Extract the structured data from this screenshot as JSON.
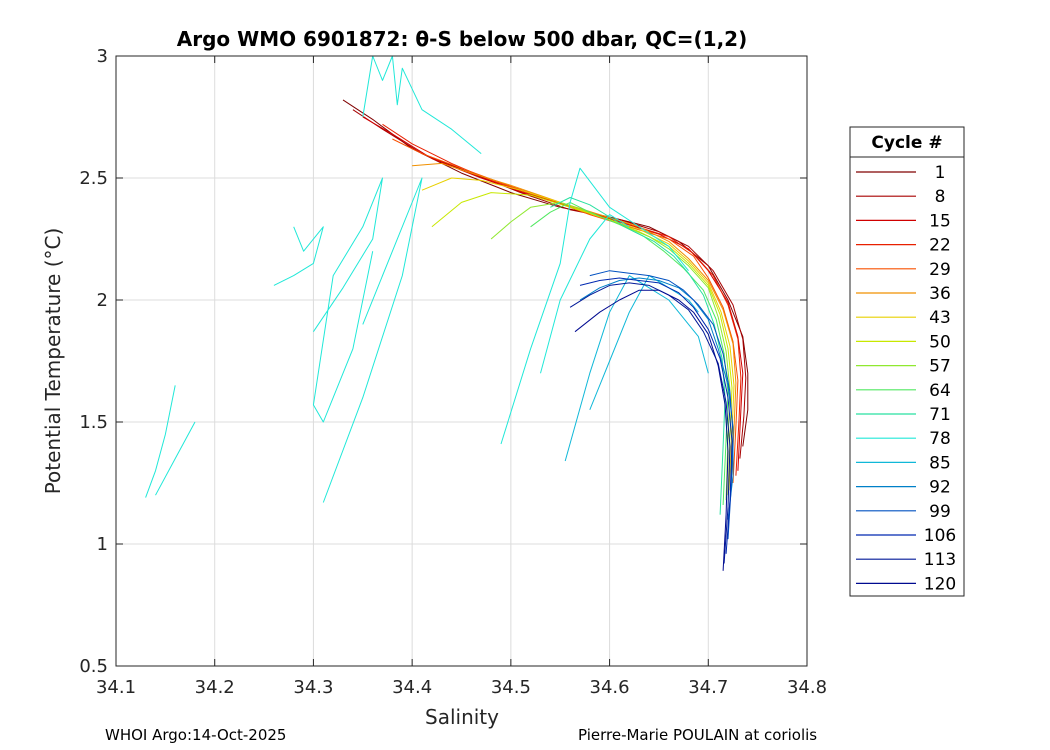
{
  "chart_data": {
    "type": "line",
    "title": "Argo WMO 6901872: θ-S below 500 dbar,  QC=(1,2)",
    "xlabel": "Salinity",
    "ylabel": "Potential Temperature (°C)",
    "xlim": [
      34.1,
      34.8
    ],
    "ylim": [
      0.5,
      3.0
    ],
    "xticks": [
      "34.1",
      "34.2",
      "34.3",
      "34.4",
      "34.5",
      "34.6",
      "34.7",
      "34.8"
    ],
    "yticks": [
      "0.5",
      "1",
      "1.5",
      "2",
      "2.5",
      "3"
    ],
    "grid": true,
    "legend": {
      "title": "Cycle #",
      "placement": "right-outside",
      "entries": [
        {
          "label": "1",
          "color": "#800000"
        },
        {
          "label": "8",
          "color": "#a80000"
        },
        {
          "label": "15",
          "color": "#d00000"
        },
        {
          "label": "22",
          "color": "#e82000"
        },
        {
          "label": "29",
          "color": "#f85000"
        },
        {
          "label": "36",
          "color": "#f09000"
        },
        {
          "label": "43",
          "color": "#e8d000"
        },
        {
          "label": "50",
          "color": "#c8e800"
        },
        {
          "label": "57",
          "color": "#90e830"
        },
        {
          "label": "64",
          "color": "#50e860"
        },
        {
          "label": "71",
          "color": "#28e0a0"
        },
        {
          "label": "78",
          "color": "#20e8d8"
        },
        {
          "label": "85",
          "color": "#10b8d8"
        },
        {
          "label": "92",
          "color": "#0080c8"
        },
        {
          "label": "99",
          "color": "#0050c0"
        },
        {
          "label": "106",
          "color": "#0028b0"
        },
        {
          "label": "113",
          "color": "#001898"
        },
        {
          "label": "120",
          "color": "#000a90"
        }
      ]
    },
    "series": [
      {
        "color": "#800000",
        "x": [
          34.33,
          34.36,
          34.4,
          34.45,
          34.5,
          34.55,
          34.6,
          34.64,
          34.67,
          34.7,
          34.72,
          34.735,
          34.74,
          34.74,
          34.735
        ],
        "y": [
          2.82,
          2.74,
          2.62,
          2.52,
          2.44,
          2.38,
          2.34,
          2.3,
          2.24,
          2.14,
          2.0,
          1.85,
          1.7,
          1.55,
          1.4
        ]
      },
      {
        "color": "#a80000",
        "x": [
          34.34,
          34.37,
          34.41,
          34.46,
          34.51,
          34.56,
          34.61,
          34.65,
          34.68,
          34.705,
          34.725,
          34.735,
          34.738,
          34.736,
          34.732
        ],
        "y": [
          2.78,
          2.7,
          2.6,
          2.52,
          2.44,
          2.37,
          2.33,
          2.28,
          2.22,
          2.12,
          1.98,
          1.84,
          1.68,
          1.52,
          1.35
        ]
      },
      {
        "color": "#d00000",
        "x": [
          34.35,
          34.38,
          34.42,
          34.47,
          34.52,
          34.57,
          34.61,
          34.65,
          34.68,
          34.7,
          34.72,
          34.73,
          34.735,
          34.733,
          34.73
        ],
        "y": [
          2.75,
          2.68,
          2.58,
          2.5,
          2.43,
          2.37,
          2.32,
          2.27,
          2.21,
          2.12,
          1.99,
          1.85,
          1.7,
          1.55,
          1.3
        ]
      },
      {
        "color": "#e82000",
        "x": [
          34.37,
          34.4,
          34.44,
          34.48,
          34.53,
          34.58,
          34.62,
          34.66,
          34.685,
          34.705,
          34.72,
          34.73,
          34.733,
          34.731,
          34.728
        ],
        "y": [
          2.72,
          2.64,
          2.56,
          2.49,
          2.42,
          2.36,
          2.31,
          2.26,
          2.19,
          2.1,
          1.98,
          1.84,
          1.68,
          1.5,
          1.28
        ]
      },
      {
        "color": "#f85000",
        "x": [
          34.38,
          34.41,
          34.45,
          34.49,
          34.54,
          34.58,
          34.62,
          34.66,
          34.685,
          34.7,
          34.715,
          34.725,
          34.73,
          34.728,
          34.725
        ],
        "y": [
          2.66,
          2.6,
          2.54,
          2.48,
          2.41,
          2.35,
          2.3,
          2.25,
          2.18,
          2.09,
          1.97,
          1.83,
          1.67,
          1.48,
          1.25
        ]
      },
      {
        "color": "#f09000",
        "x": [
          34.4,
          34.43,
          34.46,
          34.5,
          34.55,
          34.59,
          34.63,
          34.66,
          34.68,
          34.7,
          34.715,
          34.725,
          34.728,
          34.726,
          34.723
        ],
        "y": [
          2.55,
          2.56,
          2.52,
          2.47,
          2.4,
          2.35,
          2.3,
          2.24,
          2.17,
          2.08,
          1.96,
          1.82,
          1.66,
          1.47,
          1.24
        ]
      },
      {
        "color": "#e8d000",
        "x": [
          34.41,
          34.44,
          34.47,
          34.51,
          34.55,
          34.59,
          34.63,
          34.66,
          34.68,
          34.7,
          34.713,
          34.722,
          34.726,
          34.724,
          34.721
        ],
        "y": [
          2.45,
          2.5,
          2.49,
          2.45,
          2.4,
          2.34,
          2.29,
          2.23,
          2.16,
          2.07,
          1.95,
          1.81,
          1.65,
          1.46,
          1.22
        ]
      },
      {
        "color": "#c8e800",
        "x": [
          34.42,
          34.45,
          34.48,
          34.52,
          34.56,
          34.6,
          34.63,
          34.66,
          34.68,
          34.7,
          34.712,
          34.72,
          34.724,
          34.722,
          34.72
        ],
        "y": [
          2.3,
          2.4,
          2.44,
          2.43,
          2.38,
          2.33,
          2.28,
          2.22,
          2.15,
          2.06,
          1.94,
          1.8,
          1.64,
          1.45,
          1.2
        ]
      },
      {
        "color": "#90e830",
        "x": [
          34.48,
          34.5,
          34.52,
          34.55,
          34.58,
          34.61,
          34.64,
          34.66,
          34.68,
          34.7,
          34.71,
          34.718,
          34.722,
          34.72,
          34.718
        ],
        "y": [
          2.25,
          2.32,
          2.38,
          2.4,
          2.36,
          2.31,
          2.26,
          2.21,
          2.14,
          2.05,
          1.93,
          1.79,
          1.63,
          1.44,
          1.18
        ]
      },
      {
        "color": "#50e860",
        "x": [
          34.52,
          34.54,
          34.56,
          34.58,
          34.61,
          34.635,
          34.655,
          34.675,
          34.695,
          34.708,
          34.716,
          34.72,
          34.718,
          34.715
        ],
        "y": [
          2.3,
          2.36,
          2.4,
          2.36,
          2.31,
          2.26,
          2.2,
          2.13,
          2.04,
          1.92,
          1.78,
          1.62,
          1.43,
          1.16
        ]
      },
      {
        "color": "#28e0a0",
        "x": [
          34.54,
          34.56,
          34.58,
          34.6,
          34.62,
          34.645,
          34.665,
          34.68,
          34.695,
          34.706,
          34.714,
          34.717,
          34.715,
          34.712
        ],
        "y": [
          2.38,
          2.42,
          2.39,
          2.34,
          2.29,
          2.24,
          2.18,
          2.11,
          2.02,
          1.9,
          1.76,
          1.6,
          1.4,
          1.12
        ]
      },
      {
        "color": "#20e8d8",
        "x": [
          34.13,
          34.14,
          34.15,
          34.16
        ],
        "y": [
          1.19,
          1.3,
          1.45,
          1.65
        ]
      },
      {
        "color": "#20e8d8",
        "x": [
          34.14,
          34.16,
          34.18
        ],
        "y": [
          1.2,
          1.35,
          1.5
        ]
      },
      {
        "color": "#20e8d8",
        "x": [
          34.26,
          34.28,
          34.3,
          34.31,
          34.29,
          34.28
        ],
        "y": [
          2.06,
          2.1,
          2.15,
          2.3,
          2.2,
          2.3
        ]
      },
      {
        "color": "#20e8d8",
        "x": [
          34.3,
          34.33,
          34.36,
          34.37,
          34.35,
          34.32,
          34.3,
          34.31,
          34.34,
          34.36
        ],
        "y": [
          1.87,
          2.05,
          2.25,
          2.5,
          2.3,
          2.1,
          1.57,
          1.5,
          1.8,
          2.2
        ]
      },
      {
        "color": "#20e8d8",
        "x": [
          34.31,
          34.35,
          34.39,
          34.41,
          34.38,
          34.35
        ],
        "y": [
          1.17,
          1.6,
          2.1,
          2.5,
          2.2,
          1.9
        ]
      },
      {
        "color": "#20e8d8",
        "x": [
          34.35,
          34.36,
          34.37,
          34.38,
          34.385,
          34.39,
          34.41,
          34.44,
          34.47
        ],
        "y": [
          2.75,
          3.0,
          2.9,
          3.0,
          2.8,
          2.95,
          2.78,
          2.7,
          2.6
        ]
      },
      {
        "color": "#20e8d8",
        "x": [
          34.49,
          34.52,
          34.55,
          34.56,
          34.57,
          34.6,
          34.63,
          34.66,
          34.68
        ],
        "y": [
          1.41,
          1.8,
          2.15,
          2.4,
          2.54,
          2.38,
          2.3,
          2.22,
          2.12
        ]
      },
      {
        "color": "#20e8d8",
        "x": [
          34.53,
          34.55,
          34.58,
          34.6,
          34.62
        ],
        "y": [
          1.7,
          2.0,
          2.25,
          2.35,
          2.3
        ]
      },
      {
        "color": "#10b8d8",
        "x": [
          34.555,
          34.58,
          34.6,
          34.62,
          34.64,
          34.66,
          34.67,
          34.69,
          34.7
        ],
        "y": [
          1.34,
          1.7,
          1.95,
          2.1,
          2.05,
          2.0,
          1.95,
          1.85,
          1.7
        ]
      },
      {
        "color": "#10b8d8",
        "x": [
          34.58,
          34.6,
          34.62,
          34.64,
          34.66,
          34.68,
          34.69
        ],
        "y": [
          1.55,
          1.75,
          1.95,
          2.1,
          2.05,
          2.0,
          1.95
        ]
      },
      {
        "color": "#0080c8",
        "x": [
          34.57,
          34.59,
          34.61,
          34.63,
          34.65,
          34.67,
          34.685,
          34.7,
          34.71,
          34.72,
          34.725,
          34.725,
          34.72
        ],
        "y": [
          2.0,
          2.05,
          2.08,
          2.09,
          2.08,
          2.05,
          2.0,
          1.92,
          1.8,
          1.65,
          1.48,
          1.28,
          1.1
        ]
      },
      {
        "color": "#0050c0",
        "x": [
          34.58,
          34.6,
          34.62,
          34.64,
          34.66,
          34.675,
          34.69,
          34.705,
          34.715,
          34.722,
          34.725,
          34.723,
          34.72
        ],
        "y": [
          2.1,
          2.12,
          2.11,
          2.1,
          2.08,
          2.04,
          1.98,
          1.9,
          1.78,
          1.62,
          1.45,
          1.22,
          1.02
        ]
      },
      {
        "color": "#0028b0",
        "x": [
          34.57,
          34.59,
          34.61,
          34.63,
          34.65,
          34.67,
          34.685,
          34.7,
          34.712,
          34.72,
          34.724,
          34.722,
          34.718
        ],
        "y": [
          2.06,
          2.08,
          2.09,
          2.08,
          2.07,
          2.03,
          1.97,
          1.88,
          1.76,
          1.6,
          1.42,
          1.18,
          0.96
        ]
      },
      {
        "color": "#001898",
        "x": [
          34.56,
          34.58,
          34.6,
          34.62,
          34.64,
          34.66,
          34.68,
          34.695,
          34.71,
          34.718,
          34.722,
          34.72,
          34.716
        ],
        "y": [
          1.97,
          2.02,
          2.06,
          2.07,
          2.06,
          2.02,
          1.96,
          1.87,
          1.74,
          1.58,
          1.4,
          1.15,
          0.92
        ]
      },
      {
        "color": "#000a90",
        "x": [
          34.565,
          34.59,
          34.61,
          34.63,
          34.65,
          34.67,
          34.685,
          34.7,
          34.71,
          34.717,
          34.72,
          34.718,
          34.715
        ],
        "y": [
          1.87,
          1.95,
          2.0,
          2.04,
          2.04,
          2.0,
          1.95,
          1.86,
          1.73,
          1.57,
          1.38,
          1.12,
          0.89
        ]
      }
    ]
  },
  "footer": {
    "left": "WHOI Argo:14-Oct-2025",
    "right": "Pierre-Marie POULAIN at coriolis"
  }
}
